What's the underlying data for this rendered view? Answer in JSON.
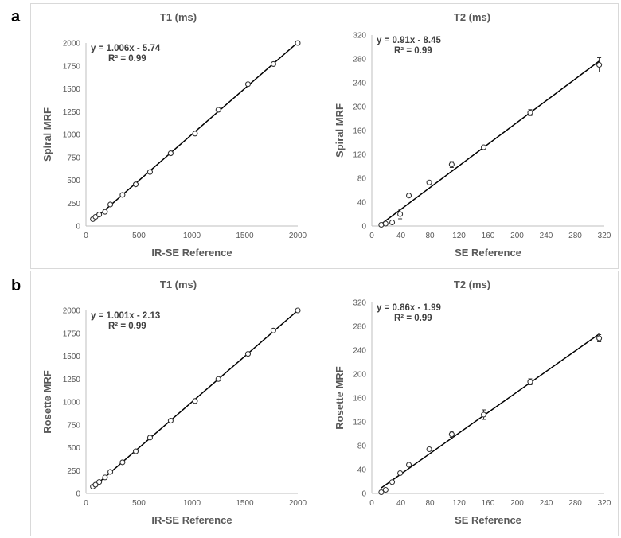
{
  "panels": [
    {
      "letter": "a"
    },
    {
      "letter": "b"
    }
  ],
  "chart_data": [
    {
      "type": "scatter",
      "title": "T1 (ms)",
      "xlabel": "IR-SE Reference",
      "ylabel": "Spiral MRF",
      "xlim": [
        0,
        2000
      ],
      "ylim": [
        0,
        2000
      ],
      "xticks": [
        0,
        500,
        1000,
        1500,
        2000
      ],
      "yticks": [
        0,
        250,
        500,
        750,
        1000,
        1250,
        1500,
        1750,
        2000
      ],
      "equation": "y = 1.006x - 5.74",
      "r2": "R² = 0.99",
      "fit": {
        "slope": 1.006,
        "intercept": -5.74,
        "x_range": [
          60,
          2000
        ]
      },
      "x": [
        65,
        90,
        125,
        180,
        230,
        345,
        470,
        605,
        800,
        1030,
        1250,
        1530,
        1770,
        2000
      ],
      "y": [
        75,
        100,
        125,
        155,
        235,
        340,
        455,
        590,
        795,
        1010,
        1270,
        1550,
        1770,
        2000
      ],
      "err": [
        5,
        5,
        5,
        5,
        5,
        5,
        5,
        5,
        5,
        5,
        5,
        5,
        5,
        5
      ],
      "grid": false
    },
    {
      "type": "scatter",
      "title": "T2 (ms)",
      "xlabel": "SE Reference",
      "ylabel": "Spiral MRF",
      "xlim": [
        0,
        320
      ],
      "ylim": [
        0,
        320
      ],
      "xticks": [
        0,
        40,
        80,
        120,
        160,
        200,
        240,
        280,
        320
      ],
      "yticks": [
        0,
        40,
        80,
        120,
        160,
        200,
        240,
        280,
        320
      ],
      "equation": "y = 0.91x - 8.45",
      "r2": "R² = 0.99",
      "fit": {
        "slope": 0.91,
        "intercept": -8.45,
        "x_range": [
          13,
          313
        ]
      },
      "x": [
        13,
        19,
        28,
        39,
        51,
        79,
        110,
        154,
        218,
        313
      ],
      "y": [
        2,
        4,
        6,
        20,
        51,
        73,
        103,
        132,
        190,
        270
      ],
      "err": [
        1,
        1,
        2,
        8,
        2,
        4,
        5,
        4,
        5,
        12
      ],
      "grid": false
    },
    {
      "type": "scatter",
      "title": "T1 (ms)",
      "xlabel": "IR-SE Reference",
      "ylabel": "Rosette MRF",
      "xlim": [
        0,
        2000
      ],
      "ylim": [
        0,
        2000
      ],
      "xticks": [
        0,
        500,
        1000,
        1500,
        2000
      ],
      "yticks": [
        0,
        250,
        500,
        750,
        1000,
        1250,
        1500,
        1750,
        2000
      ],
      "equation": "y = 1.001x - 2.13",
      "r2": "R² = 0.99",
      "fit": {
        "slope": 1.001,
        "intercept": -2.13,
        "x_range": [
          60,
          2000
        ]
      },
      "x": [
        65,
        90,
        125,
        180,
        230,
        345,
        470,
        605,
        800,
        1030,
        1250,
        1530,
        1770,
        2000
      ],
      "y": [
        75,
        95,
        125,
        175,
        235,
        340,
        460,
        610,
        795,
        1010,
        1250,
        1525,
        1780,
        2000
      ],
      "err": [
        5,
        5,
        5,
        5,
        5,
        5,
        5,
        5,
        5,
        5,
        5,
        5,
        5,
        5
      ],
      "grid": false
    },
    {
      "type": "scatter",
      "title": "T2 (ms)",
      "xlabel": "SE Reference",
      "ylabel": "Rosette MRF",
      "xlim": [
        0,
        320
      ],
      "ylim": [
        0,
        320
      ],
      "xticks": [
        0,
        40,
        80,
        120,
        160,
        200,
        240,
        280,
        320
      ],
      "yticks": [
        0,
        40,
        80,
        120,
        160,
        200,
        240,
        280,
        320
      ],
      "equation": "y = 0.86x - 1.99",
      "r2": "R² = 0.99",
      "fit": {
        "slope": 0.86,
        "intercept": -1.99,
        "x_range": [
          13,
          313
        ]
      },
      "x": [
        13,
        19,
        28,
        39,
        51,
        79,
        110,
        154,
        218,
        313
      ],
      "y": [
        2,
        6,
        19,
        34,
        48,
        74,
        99,
        132,
        187,
        260
      ],
      "err": [
        1,
        2,
        4,
        2,
        4,
        2,
        5,
        8,
        5,
        6
      ],
      "grid": false
    }
  ]
}
